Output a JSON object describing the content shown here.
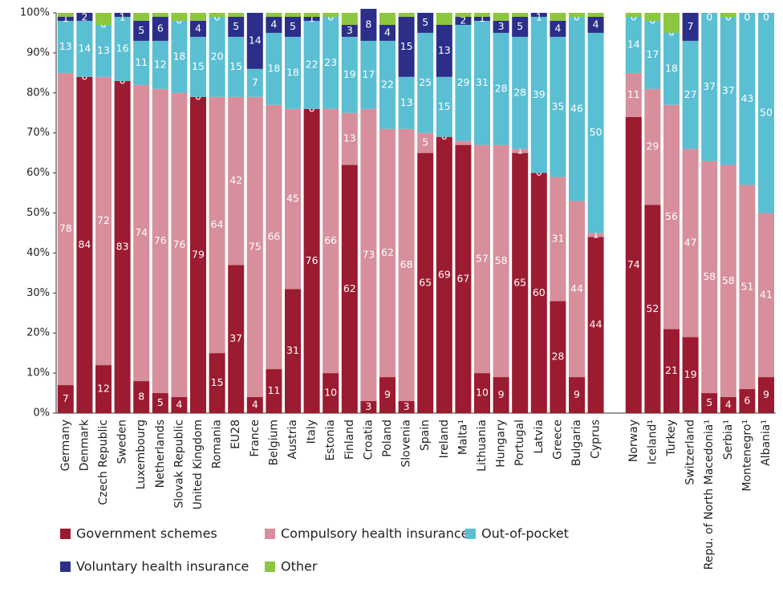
{
  "chart_data": {
    "type": "stacked_bar",
    "categories": [
      "Germany",
      "Denmark",
      "Czech Republic",
      "Sweden",
      "Luxembourg",
      "Netherlands",
      "Slovak Republic",
      "United Kingdom",
      "Romania",
      "EU28",
      "France",
      "Belgium",
      "Austria",
      "Italy",
      "Estonia",
      "Finland",
      "Croatia",
      "Poland",
      "Slovenia",
      "Spain",
      "Ireland",
      "Malta¹",
      "Lithuania",
      "Hungary",
      "Portugal",
      "Latvia",
      "Greece",
      "Bulgaria",
      "Cyprus",
      null,
      "Norway",
      "Iceland¹",
      "Turkey",
      "Switzerland",
      "Repu. of North Macedonia¹",
      "Serbia¹",
      "Montenegro¹",
      "Albania¹"
    ],
    "series": [
      {
        "name": "Government schemes",
        "color": "#9b1b30",
        "values": [
          7,
          84,
          12,
          83,
          8,
          5,
          4,
          79,
          15,
          37,
          4,
          11,
          31,
          76,
          10,
          62,
          3,
          9,
          3,
          65,
          69,
          67,
          10,
          9,
          65,
          60,
          28,
          9,
          44,
          null,
          74,
          52,
          21,
          19,
          5,
          4,
          6,
          9
        ],
        "value_labels": [
          7,
          84,
          12,
          83,
          8,
          5,
          4,
          79,
          15,
          37,
          4,
          11,
          31,
          76,
          10,
          62,
          3,
          9,
          3,
          65,
          69,
          67,
          10,
          9,
          65,
          60,
          28,
          9,
          44,
          null,
          74,
          52,
          21,
          19,
          5,
          4,
          6,
          9
        ]
      },
      {
        "name": "Compulsory health insurance",
        "color": "#d68f9b",
        "values": [
          78,
          0,
          72,
          0,
          74,
          76,
          76,
          0,
          64,
          42,
          75,
          66,
          45,
          0,
          66,
          13,
          73,
          62,
          68,
          5,
          0,
          1,
          57,
          58,
          1,
          0,
          31,
          44,
          1,
          null,
          11,
          29,
          56,
          47,
          58,
          58,
          51,
          41
        ],
        "value_labels": [
          78,
          0,
          72,
          0,
          74,
          76,
          76,
          0,
          64,
          42,
          75,
          66,
          45,
          0,
          66,
          13,
          73,
          62,
          68,
          5,
          0,
          null,
          57,
          58,
          1,
          0,
          31,
          44,
          1,
          null,
          11,
          29,
          56,
          47,
          58,
          58,
          51,
          41
        ]
      },
      {
        "name": "Out-of-pocket",
        "color": "#5bbfd3",
        "values": [
          13,
          14,
          13,
          16,
          11,
          12,
          18,
          15,
          20,
          15,
          7,
          18,
          18,
          22,
          23,
          19,
          17,
          22,
          13,
          25,
          15,
          29,
          31,
          28,
          28,
          39,
          35,
          46,
          50,
          null,
          14,
          17,
          18,
          27,
          37,
          37,
          43,
          50
        ],
        "value_labels": [
          13,
          14,
          13,
          16,
          11,
          12,
          18,
          15,
          20,
          15,
          7,
          18,
          18,
          22,
          23,
          19,
          17,
          22,
          13,
          25,
          15,
          29,
          31,
          28,
          28,
          39,
          35,
          46,
          50,
          null,
          14,
          17,
          18,
          27,
          37,
          37,
          43,
          50
        ]
      },
      {
        "name": "Voluntary health insurance",
        "color": "#2b2f8a",
        "values": [
          1,
          2,
          0,
          1,
          5,
          6,
          0,
          4,
          0,
          5,
          14,
          4,
          5,
          1,
          0,
          3,
          8,
          4,
          15,
          5,
          13,
          2,
          1,
          3,
          5,
          1,
          4,
          0,
          4,
          null,
          0,
          0,
          0,
          7,
          0,
          0,
          0,
          0
        ],
        "value_labels": [
          1,
          2,
          0,
          1,
          5,
          6,
          0,
          4,
          0,
          5,
          14,
          4,
          5,
          1,
          0,
          3,
          8,
          4,
          15,
          5,
          13,
          2,
          1,
          3,
          5,
          1,
          4,
          0,
          4,
          null,
          0,
          0,
          0,
          7,
          0,
          0,
          0,
          0
        ]
      },
      {
        "name": "Other",
        "color": "#8dc63f",
        "values": [
          1,
          0,
          3,
          0,
          2,
          1,
          2,
          2,
          1,
          1,
          0,
          1,
          1,
          1,
          1,
          3,
          0,
          3,
          1,
          0,
          3,
          1,
          1,
          2,
          1,
          0,
          2,
          1,
          1,
          null,
          1,
          2,
          5,
          0,
          0,
          1,
          0,
          0
        ]
      }
    ],
    "ylim": [
      0,
      100
    ],
    "yticks": [
      {
        "value": 0,
        "label": "0%"
      },
      {
        "value": 10,
        "label": "10%"
      },
      {
        "value": 20,
        "label": "20%"
      },
      {
        "value": 30,
        "label": "30%"
      },
      {
        "value": 40,
        "label": "40%"
      },
      {
        "value": 50,
        "label": "50%"
      },
      {
        "value": 60,
        "label": "60%"
      },
      {
        "value": 70,
        "label": "70%"
      },
      {
        "value": 80,
        "label": "80%"
      },
      {
        "value": 90,
        "label": "90%"
      },
      {
        "value": 100,
        "label": "100%"
      }
    ]
  }
}
